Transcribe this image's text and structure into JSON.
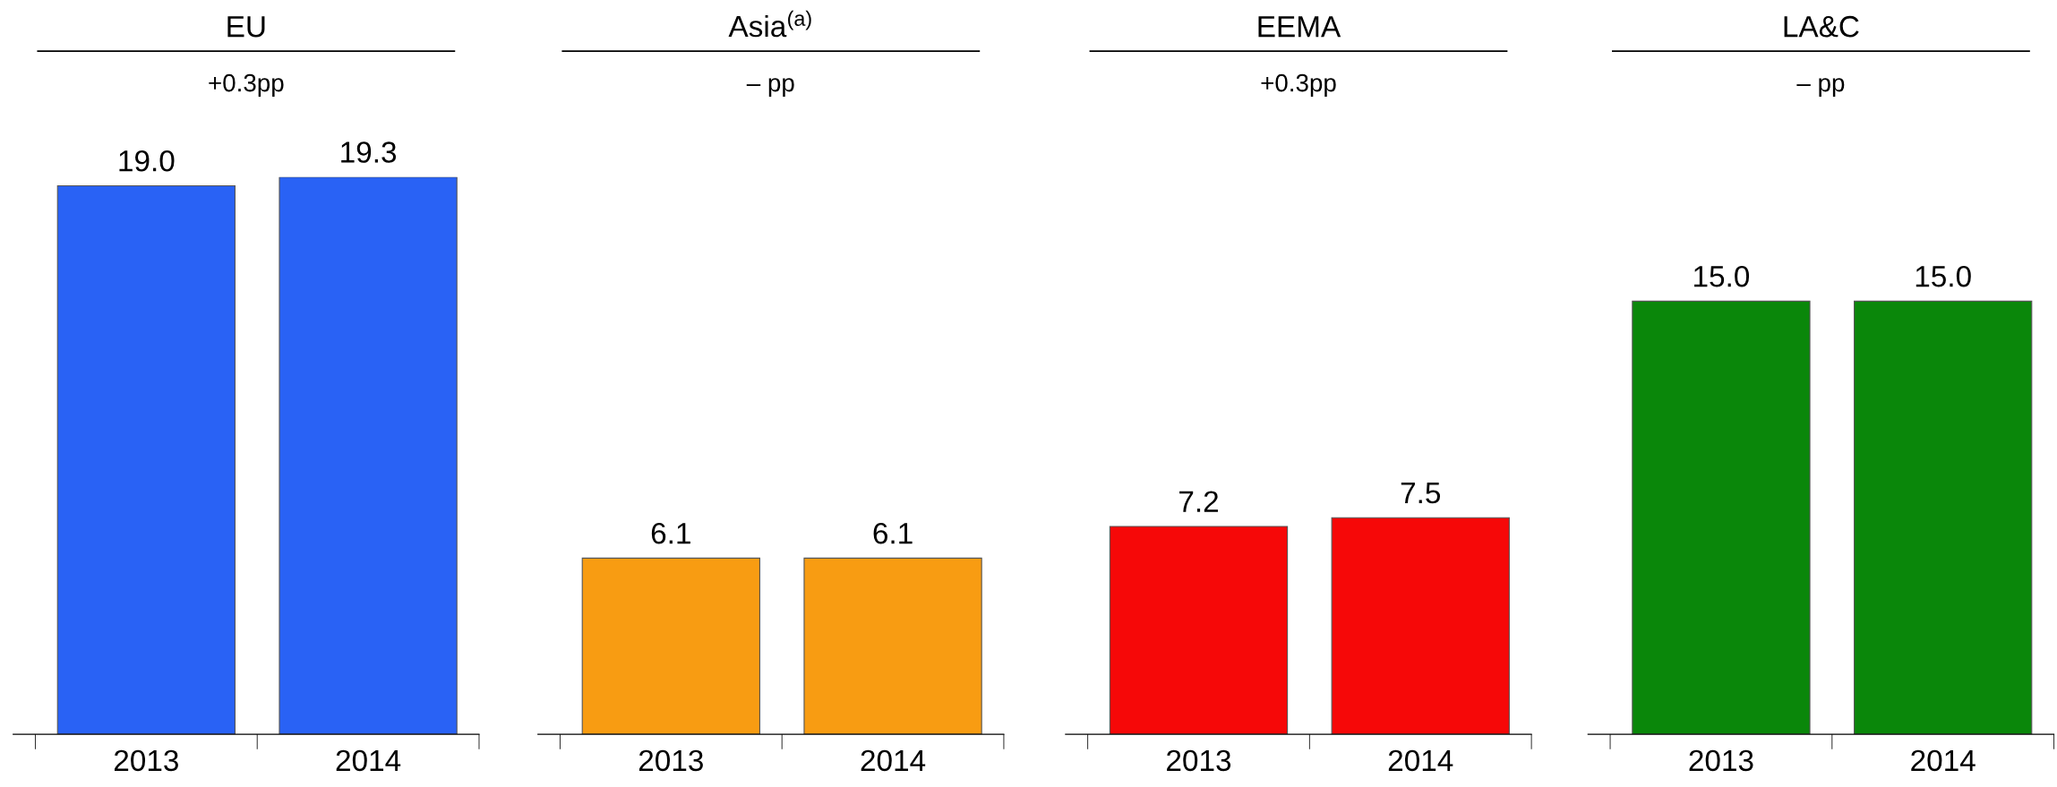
{
  "chart_data": [
    {
      "type": "bar",
      "title": "EU",
      "subtitle": "+0.3pp",
      "categories": [
        "2013",
        "2014"
      ],
      "values": [
        19.0,
        19.3
      ],
      "color": "#2962f5",
      "value_labels": [
        "19.0",
        "19.3"
      ]
    },
    {
      "type": "bar",
      "title": "Asia$^{(a)}$",
      "subtitle": "– pp",
      "categories": [
        "2013",
        "2014"
      ],
      "values": [
        6.1,
        6.1
      ],
      "color": "#f89c12",
      "value_labels": [
        "6.1",
        "6.1"
      ]
    },
    {
      "type": "bar",
      "title": "EEMA",
      "subtitle": "+0.3pp",
      "categories": [
        "2013",
        "2014"
      ],
      "values": [
        7.2,
        7.5
      ],
      "color": "#f60808",
      "value_labels": [
        "7.2",
        "7.5"
      ]
    },
    {
      "type": "bar",
      "title": "LA&C",
      "subtitle": "– pp",
      "categories": [
        "2013",
        "2014"
      ],
      "values": [
        15.0,
        15.0
      ],
      "color": "#0a870a",
      "value_labels": [
        "15.0",
        "15.0"
      ]
    }
  ]
}
